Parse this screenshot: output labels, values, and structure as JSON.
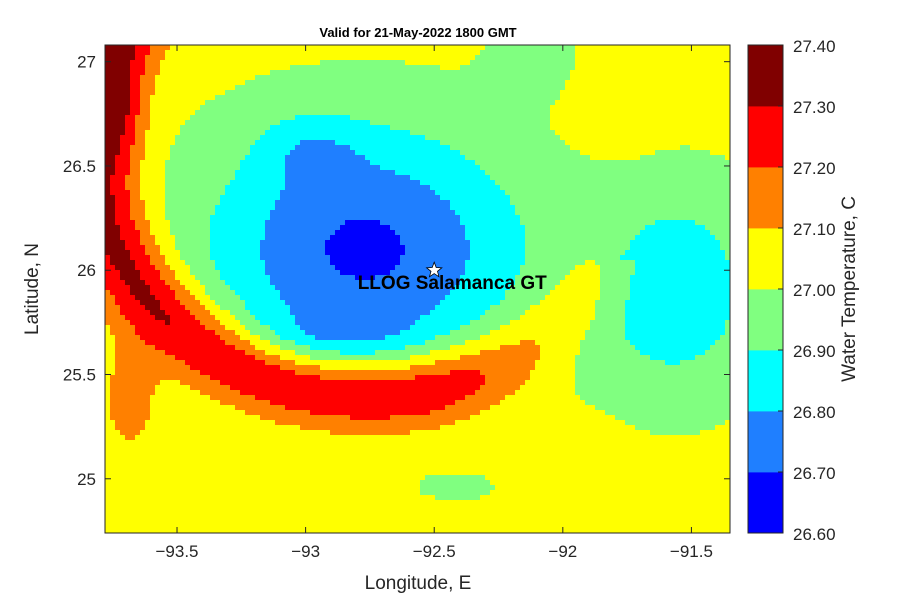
{
  "chart_data": {
    "type": "heatmap",
    "subtype": "filled-contour-map",
    "title": "Valid for 21-May-2022 1800 GMT",
    "xlabel": "Longitude, E",
    "ylabel": "Latitude, N",
    "colorbar_label": "Water Temperature, C",
    "xlim": [
      -93.78,
      -91.35
    ],
    "ylim": [
      24.74,
      27.08
    ],
    "x_ticks": [
      {
        "value": -93.5,
        "label": "−93.5"
      },
      {
        "value": -93.0,
        "label": "−93"
      },
      {
        "value": -92.5,
        "label": "−92.5"
      },
      {
        "value": -92.0,
        "label": "−92"
      },
      {
        "value": -91.5,
        "label": "−91.5"
      }
    ],
    "y_ticks": [
      {
        "value": 25.0,
        "label": "25"
      },
      {
        "value": 25.5,
        "label": "25.5"
      },
      {
        "value": 26.0,
        "label": "26"
      },
      {
        "value": 26.5,
        "label": "26.5"
      },
      {
        "value": 27.0,
        "label": "27"
      }
    ],
    "levels": [
      26.6,
      26.7,
      26.8,
      26.9,
      27.0,
      27.1,
      27.2,
      27.3,
      27.4
    ],
    "colorbar_labels": [
      "26.60",
      "26.70",
      "26.80",
      "26.90",
      "27.00",
      "27.10",
      "27.20",
      "27.30",
      "27.40"
    ],
    "colors": [
      "#0000ff",
      "#1f7fff",
      "#00ffff",
      "#80ff80",
      "#ffff00",
      "#ff8000",
      "#ff0000",
      "#800000"
    ],
    "grid": false,
    "marker": {
      "label": "LLOG Salamanca GT",
      "lon": -92.5,
      "lat": 26.0,
      "symbol": "star"
    },
    "field_model": {
      "background": 27.03,
      "terms": [
        {
          "cx": -92.77,
          "cy": 26.1,
          "sx": 0.62,
          "sy": 0.58,
          "amp": -0.35
        },
        {
          "cx": -92.98,
          "cy": 26.58,
          "sx": 0.2,
          "sy": 0.17,
          "amp": -0.1
        },
        {
          "cx": -92.9,
          "cy": 25.68,
          "sx": 0.3,
          "sy": 0.12,
          "amp": -0.09
        },
        {
          "cx": -91.55,
          "cy": 25.9,
          "sx": 0.32,
          "sy": 0.5,
          "amp": -0.2
        },
        {
          "cx": -92.1,
          "cy": 27.0,
          "sx": 0.18,
          "sy": 0.2,
          "amp": -0.07
        },
        {
          "cx": -92.05,
          "cy": 25.65,
          "sx": 0.3,
          "sy": 0.2,
          "amp": -0.04
        },
        {
          "cx": -91.8,
          "cy": 26.8,
          "sx": 0.22,
          "sy": 0.2,
          "amp": 0.04
        },
        {
          "cx": -93.2,
          "cy": 24.95,
          "sx": 0.15,
          "sy": 0.15,
          "amp": 0.06
        },
        {
          "cx": -92.4,
          "cy": 24.95,
          "sx": 0.35,
          "sy": 0.15,
          "amp": -0.03
        },
        {
          "cx": -93.68,
          "cy": 25.4,
          "sx": 0.12,
          "sy": 0.3,
          "amp": 0.12
        },
        {
          "cx": -93.72,
          "cy": 26.75,
          "sx": 0.1,
          "sy": 0.25,
          "amp": 0.12
        }
      ],
      "ring": {
        "cx": -92.75,
        "cy": 26.6,
        "radius": 1.08,
        "width": 0.16,
        "amp": 0.32,
        "taper_lon": -91.6
      }
    }
  }
}
